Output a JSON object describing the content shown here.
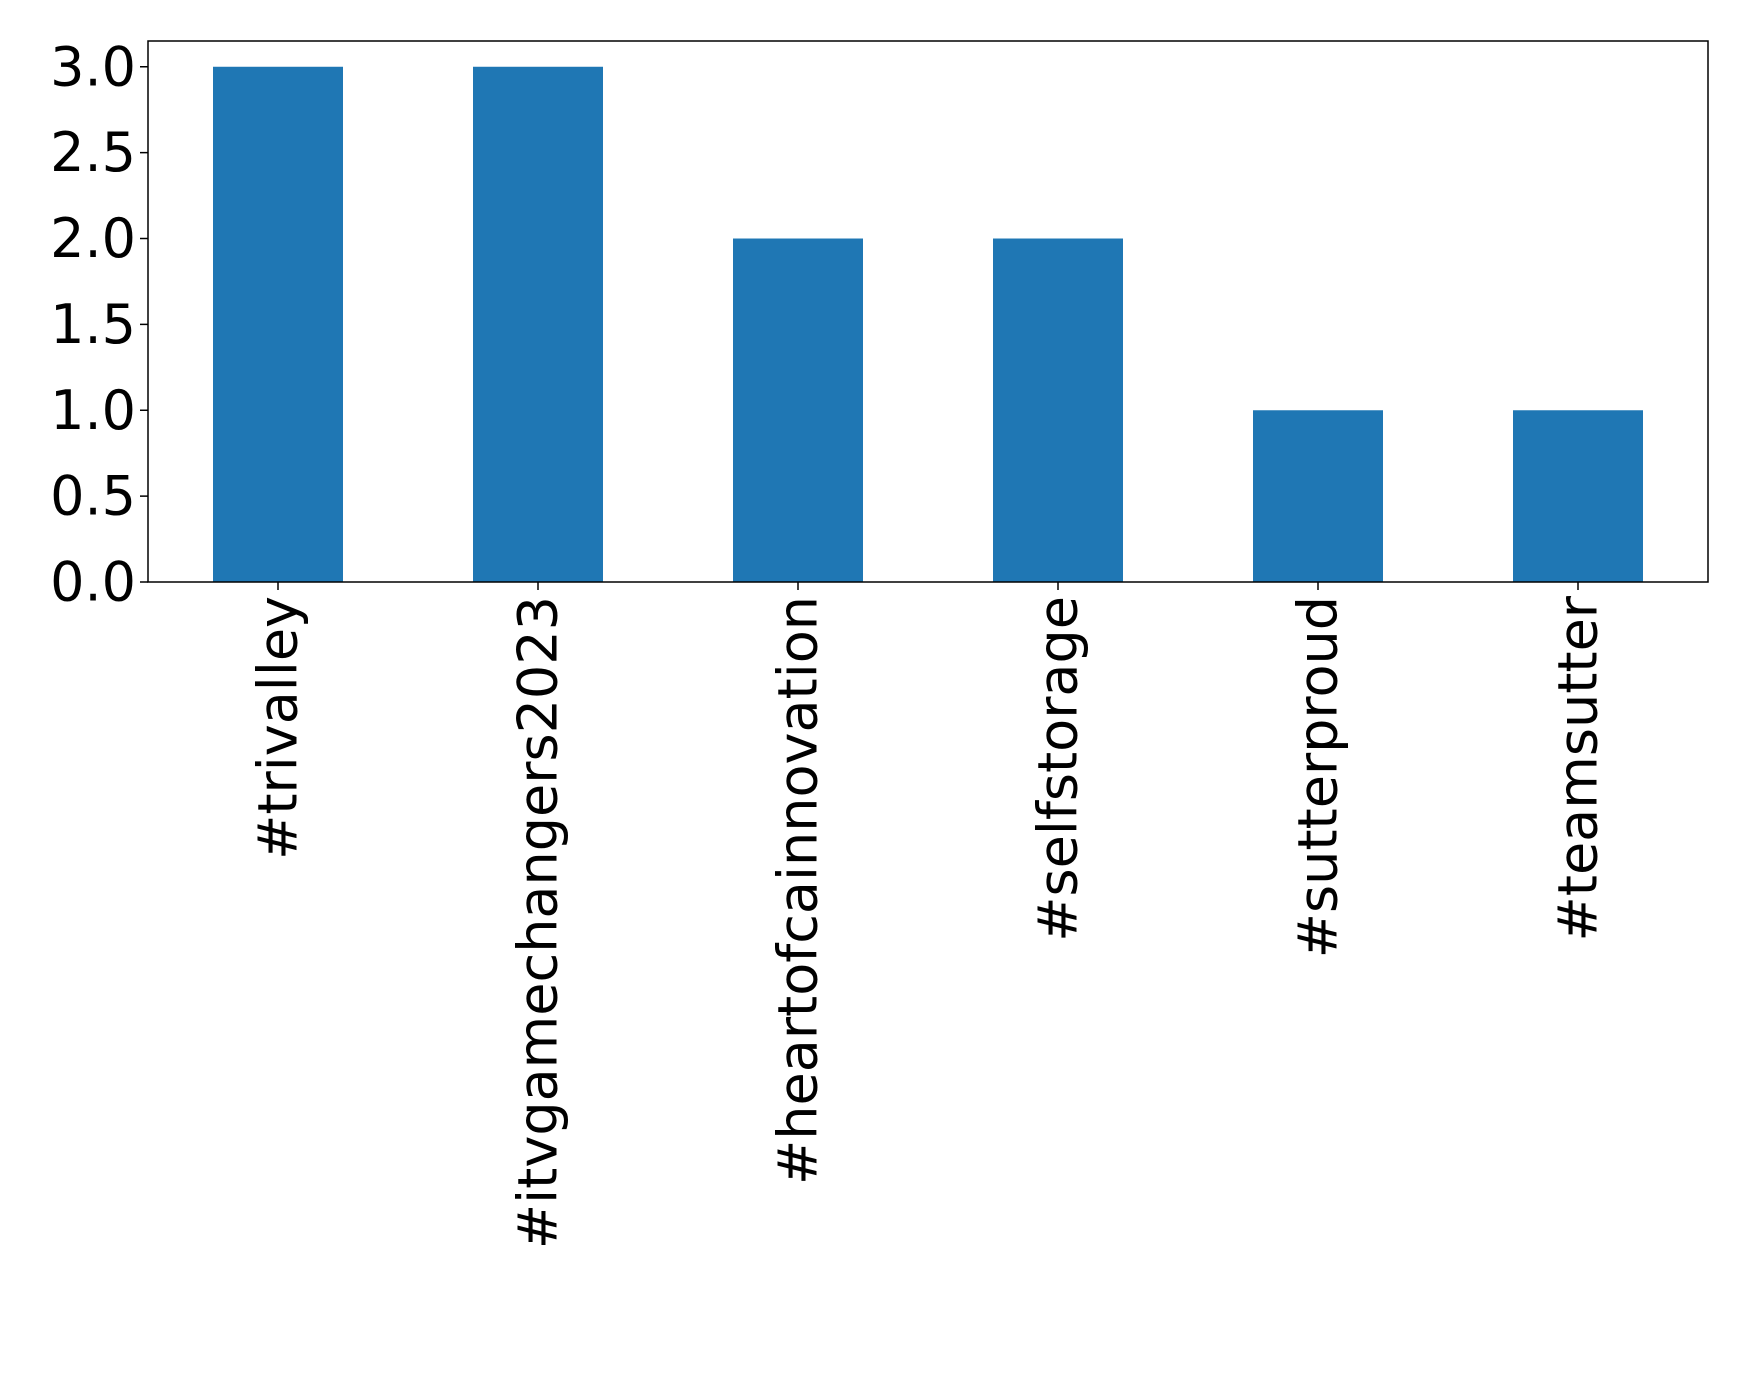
{
  "chart_data": {
    "type": "bar",
    "categories": [
      "#trivalley",
      "#itvgamechangers2023",
      "#heartofcainnovation",
      "#selfstorage",
      "#sutterproud",
      "#teamsutter"
    ],
    "values": [
      3,
      3,
      2,
      2,
      1,
      1
    ],
    "color": "#1f77b4",
    "ylim": [
      0,
      3.15
    ],
    "yticks": [
      {
        "value": 0,
        "label": "0.0"
      },
      {
        "value": 0.5,
        "label": "0.5"
      },
      {
        "value": 1,
        "label": "1.0"
      },
      {
        "value": 1.5,
        "label": "1.5"
      },
      {
        "value": 2,
        "label": "2.0"
      },
      {
        "value": 2.5,
        "label": "2.5"
      },
      {
        "value": 3,
        "label": "3.0"
      }
    ],
    "grid": false
  }
}
